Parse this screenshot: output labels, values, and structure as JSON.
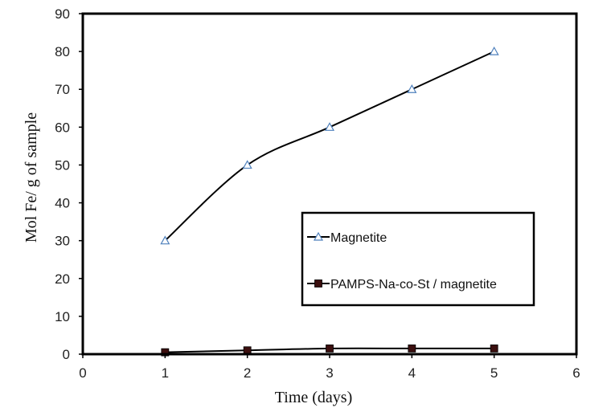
{
  "chart_data": {
    "type": "line",
    "title": "",
    "xlabel": "Time (days)",
    "ylabel": "Mol Fe/ g of sample",
    "xlim": [
      0,
      6
    ],
    "ylim": [
      0,
      90
    ],
    "x_ticks": [
      0,
      1,
      2,
      3,
      4,
      5,
      6
    ],
    "y_ticks": [
      0,
      10,
      20,
      30,
      40,
      50,
      60,
      70,
      80,
      90
    ],
    "grid": false,
    "legend_position": "center-right",
    "series": [
      {
        "name": "Magnetite",
        "marker": "open-triangle",
        "marker_color": "#4f81bd",
        "line_color": "#000000",
        "x": [
          1,
          2,
          3,
          4,
          5
        ],
        "y": [
          30,
          50,
          60,
          70,
          80
        ]
      },
      {
        "name": "PAMPS-Na-co-St / magnetite",
        "marker": "filled-square",
        "marker_color": "#3b0f0f",
        "line_color": "#000000",
        "x": [
          1,
          2,
          3,
          4,
          5
        ],
        "y": [
          0.5,
          1,
          1.5,
          1.5,
          1.5
        ]
      }
    ]
  }
}
